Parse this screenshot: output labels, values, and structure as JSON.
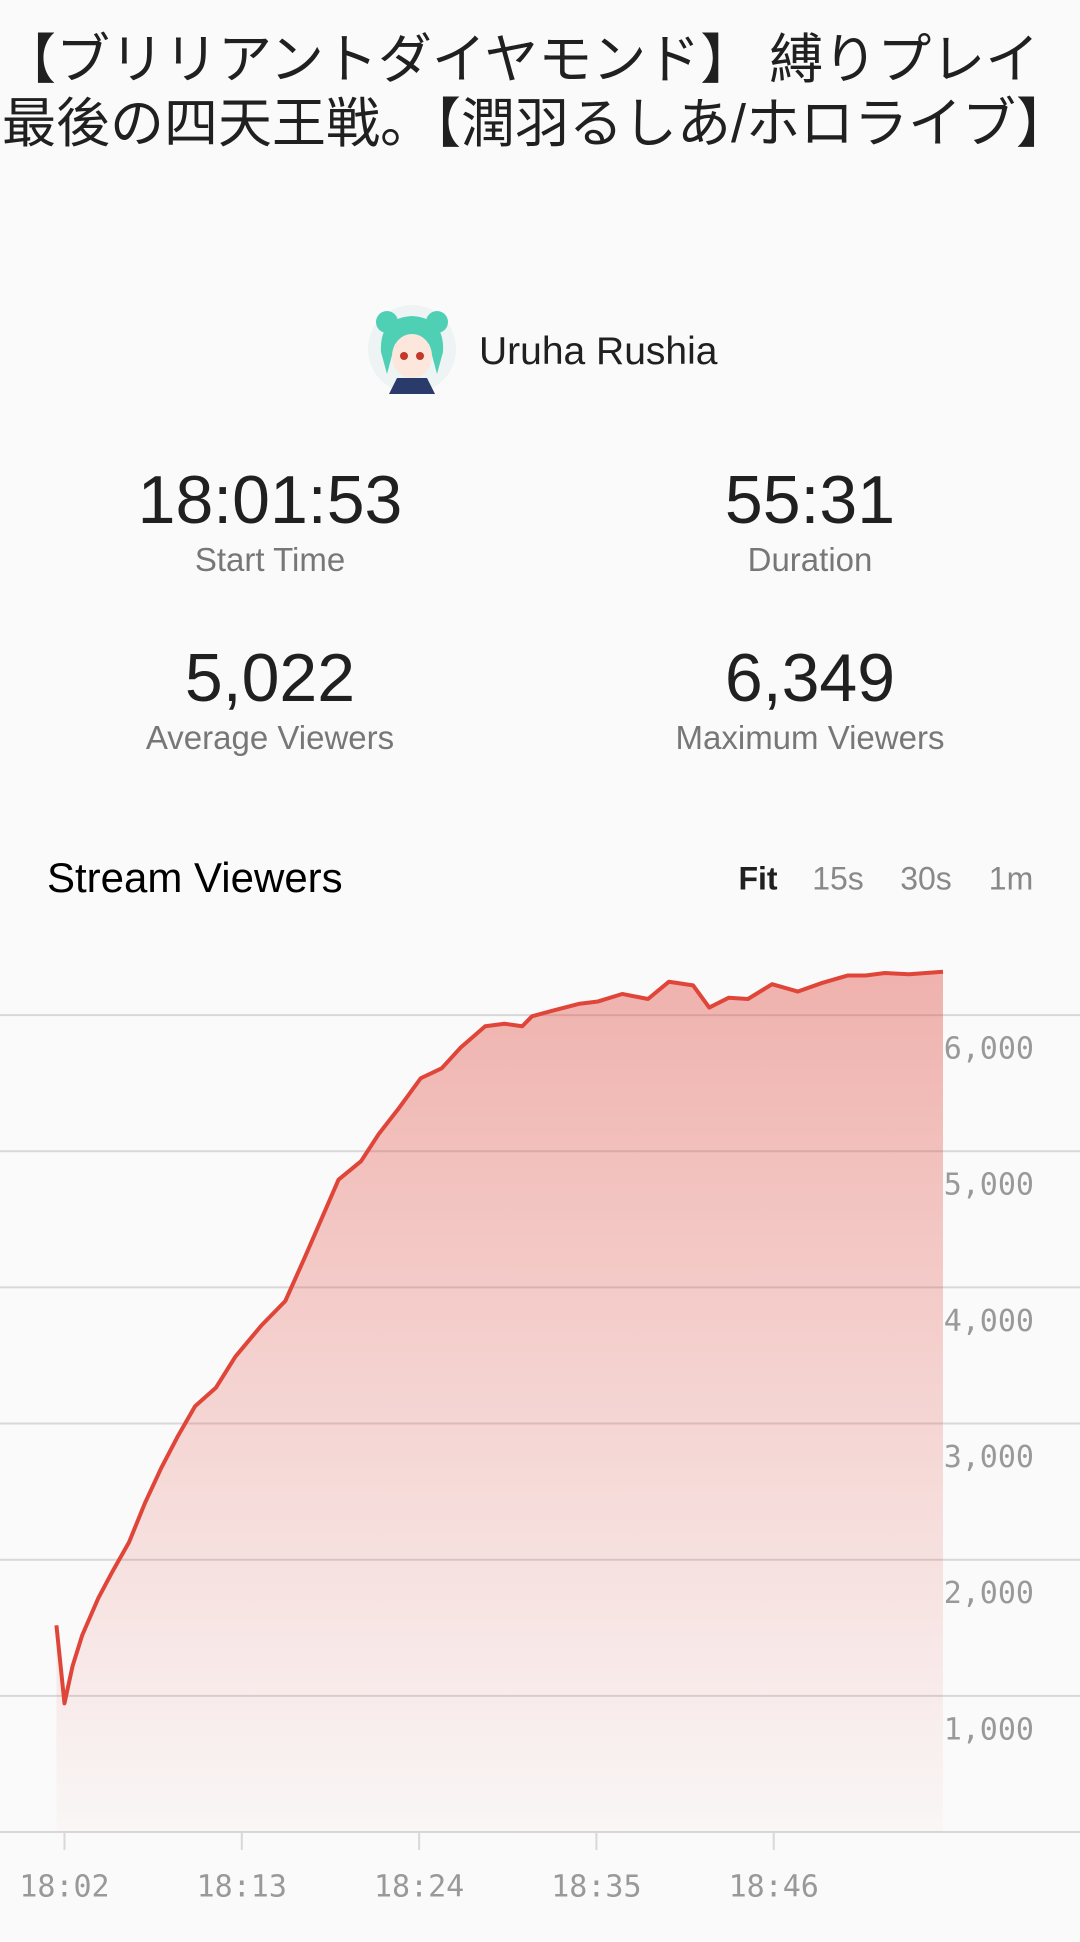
{
  "video_title": "【ブリリアントダイヤモンド】 縛りプレイ最後の四天王戦。【潤羽るしあ/ホロライブ】",
  "channel_name": "Uruha Rushia",
  "stats": [
    {
      "value": "18:01:53",
      "label": "Start Time"
    },
    {
      "value": "55:31",
      "label": "Duration"
    },
    {
      "value": "5,022",
      "label": "Average Viewers"
    },
    {
      "value": "6,349",
      "label": "Maximum Viewers"
    }
  ],
  "chart_data": {
    "type": "area",
    "title": "Stream Viewers",
    "range_options": [
      "Fit",
      "15s",
      "30s",
      "1m"
    ],
    "x": [
      1081.5,
      1082,
      1082.5,
      1083.1,
      1084.1,
      1085,
      1086,
      1087,
      1088,
      1089,
      1090.1,
      1091.4,
      1092.6,
      1094.2,
      1095.7,
      1096.9,
      1097.9,
      1099,
      1100.4,
      1101.5,
      1102.7,
      1104.1,
      1105.4,
      1106.6,
      1108.1,
      1109.3,
      1110.4,
      1111,
      1112.4,
      1113.9,
      1115.1,
      1116.6,
      1118.2,
      1119.5,
      1121,
      1122,
      1123.2,
      1124.4,
      1125.9,
      1127.5,
      1129,
      1130.6,
      1131.7,
      1132.9,
      1134.4,
      1136.5
    ],
    "series": [
      {
        "name": "Viewers",
        "color": "#e0453a",
        "values": [
          1518,
          945,
          1218,
          1445,
          1718,
          1918,
          2127,
          2418,
          2673,
          2900,
          3127,
          3264,
          3491,
          3718,
          3900,
          4218,
          4491,
          4791,
          4927,
          5127,
          5309,
          5536,
          5609,
          5764,
          5918,
          5936,
          5918,
          5991,
          6036,
          6082,
          6100,
          6155,
          6118,
          6245,
          6218,
          6055,
          6127,
          6118,
          6227,
          6173,
          6236,
          6291,
          6291,
          6309,
          6300,
          6318
        ]
      }
    ],
    "xlim": [
      1078,
      1145
    ],
    "xticks": [
      {
        "value": 1082,
        "label": "18:02"
      },
      {
        "value": 1093,
        "label": "18:13"
      },
      {
        "value": 1104,
        "label": "18:24"
      },
      {
        "value": 1115,
        "label": "18:35"
      },
      {
        "value": 1126,
        "label": "18:46"
      }
    ],
    "ylim": [
      0,
      6500
    ],
    "yticks": [
      {
        "value": 1000,
        "label": "1,000"
      },
      {
        "value": 2000,
        "label": "2,000"
      },
      {
        "value": 3000,
        "label": "3,000"
      },
      {
        "value": 4000,
        "label": "4,000"
      },
      {
        "value": 5000,
        "label": "5,000"
      },
      {
        "value": 6000,
        "label": "6,000"
      }
    ],
    "grid": true
  }
}
